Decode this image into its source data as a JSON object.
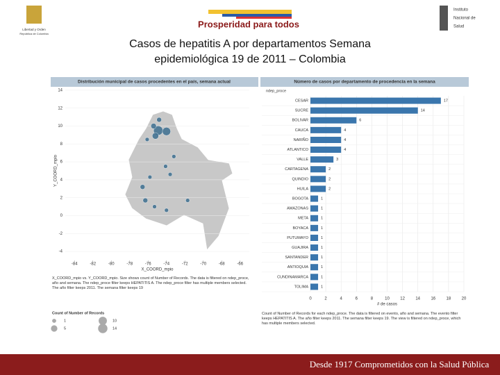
{
  "header": {
    "left_logo": [
      "Libertad y Orden",
      "República de Colombia"
    ],
    "center_logo": "Prosperidad para todos",
    "right_logo": [
      "Instituto",
      "Nacional de",
      "Salud"
    ]
  },
  "title": [
    "Casos de hepatitis A  por departamentos Semana",
    "epidemiológica 19 de 2011 – Colombia"
  ],
  "footer": "Desde 1917 Comprometidos con la Salud Pública",
  "chart_data": [
    {
      "type": "scatter",
      "title": "Distribución municipal de casos procedentes en el país, semana actual",
      "xlabel": "X_COORD_mpio",
      "ylabel": "Y_COORD_mpio",
      "x": [
        -74.9,
        -74.0,
        -75.2,
        -75.4,
        -74.8,
        -76.1,
        -76.6,
        -76.3,
        -75.8,
        -74.1,
        -73.2,
        -75.3,
        -74.0,
        -71.7,
        -73.6
      ],
      "y": [
        9.5,
        9.4,
        8.9,
        10.0,
        10.7,
        8.5,
        3.2,
        1.7,
        4.3,
        5.5,
        6.6,
        1.0,
        0.6,
        1.7,
        4.6
      ],
      "sizes": [
        14,
        10,
        5,
        3,
        2,
        1,
        2,
        2,
        1,
        1,
        1,
        1,
        1,
        1,
        1
      ],
      "color": "#3d6f8f",
      "xlim": [
        -85,
        -65
      ],
      "xticks": [
        -84,
        -82,
        -80,
        -78,
        -76,
        -74,
        -72,
        -70,
        -68,
        -66
      ],
      "ylim": [
        -5,
        15
      ],
      "yticks": [
        -4,
        -2,
        0,
        2,
        4,
        6,
        8,
        10,
        12,
        14
      ],
      "note": "X_COORD_mpio vs. Y_COORD_mpio.  Size shows count of Number of Records.  The data is filtered on ndep_proce, año and semana. The ndep_proce filter keeps HEPATITIS A. The ndep_proce filter has multiple members selected. The año filter keeps 2011. The semana filter keeps 19",
      "size_legend": {
        "title": "Count of Number of Records",
        "values": [
          1,
          5,
          10,
          14
        ]
      }
    },
    {
      "type": "bar",
      "orientation": "horizontal",
      "title": "Número de casos por departamento de procedencia en la semana",
      "category_header": "ndep_proce",
      "xlabel": "# de casos",
      "categories": [
        "CESAR",
        "SUCRE",
        "BOLIVAR",
        "CAUCA",
        "NARIÑO",
        "ATLANTICO",
        "VALLE",
        "CARTAGENA",
        "QUINDIO",
        "HUILA",
        "BOGOTA",
        "AMAZONAS",
        "META",
        "BOYACA",
        "PUTUMAYO",
        "GUAJIRA",
        "SANTANDER",
        "ANTIOQUIA",
        "CUNDINAMARCA",
        "TOLIMA"
      ],
      "values": [
        17,
        14,
        6,
        4,
        4,
        4,
        3,
        2,
        2,
        2,
        1,
        1,
        1,
        1,
        1,
        1,
        1,
        1,
        1,
        1
      ],
      "color": "#3a76ad",
      "xlim": [
        0,
        20
      ],
      "xticks": [
        0,
        2,
        4,
        6,
        8,
        10,
        12,
        14,
        16,
        18,
        20
      ],
      "note": "Count of Number of Records for each ndep_proce. The data is filtered on evento, año and semana. The evento filter keeps HEPATITIS A. The año filter keeps 2011. The semana filter keeps 19. The view is filtered on ndep_proce, which has multiple members selected."
    }
  ]
}
